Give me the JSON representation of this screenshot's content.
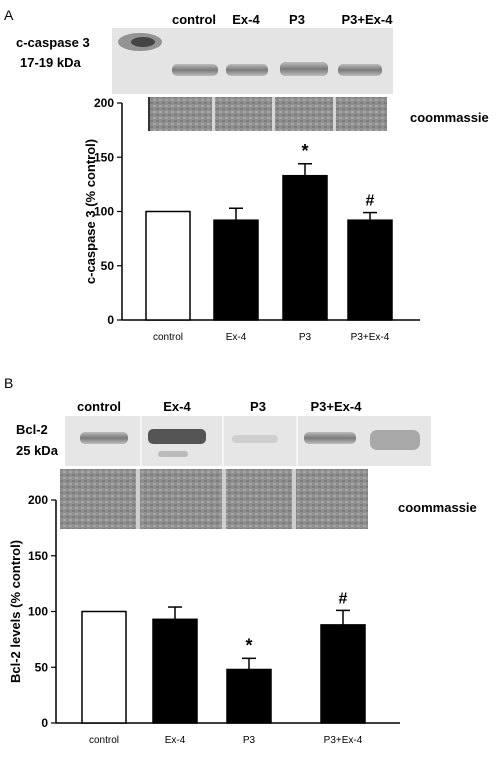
{
  "panels": [
    {
      "letter": "A",
      "blot_protein": "c-caspase 3",
      "blot_weight": "17-19 kDa",
      "lane_labels": [
        "control",
        "Ex-4",
        "P3",
        "P3+Ex-4"
      ],
      "loading_label": "coommassie"
    },
    {
      "letter": "B",
      "blot_protein": "Bcl-2",
      "blot_weight": "25 kDa",
      "lane_labels": [
        "control",
        "Ex-4",
        "P3",
        "P3+Ex-4"
      ],
      "loading_label": "coommassie"
    }
  ],
  "colors": {
    "control_bar": "#ffffff",
    "treated_bar": "#000000",
    "blot_bg": "#e6e6e6"
  },
  "chart_data": [
    {
      "type": "bar",
      "categories": [
        "control",
        "Ex-4",
        "P3",
        "P3+Ex-4"
      ],
      "values": [
        100,
        92,
        133,
        92
      ],
      "errors": [
        0,
        11,
        11,
        7
      ],
      "annotations": [
        "",
        "",
        "*",
        "#"
      ],
      "ylabel": "c-caspase 3 (% control)",
      "xlabel": "",
      "ylim": [
        0,
        200
      ],
      "yticks": [
        "0",
        "50",
        "100",
        "150",
        "200"
      ]
    },
    {
      "type": "bar",
      "categories": [
        "control",
        "Ex-4",
        "P3",
        "P3+Ex-4"
      ],
      "values": [
        100,
        93,
        48,
        88
      ],
      "errors": [
        0,
        11,
        10,
        13
      ],
      "annotations": [
        "",
        "",
        "*",
        "#"
      ],
      "ylabel": "Bcl-2 levels (% control)",
      "xlabel": "",
      "ylim": [
        0,
        200
      ],
      "yticks": [
        "0",
        "50",
        "100",
        "150",
        "200"
      ]
    }
  ]
}
